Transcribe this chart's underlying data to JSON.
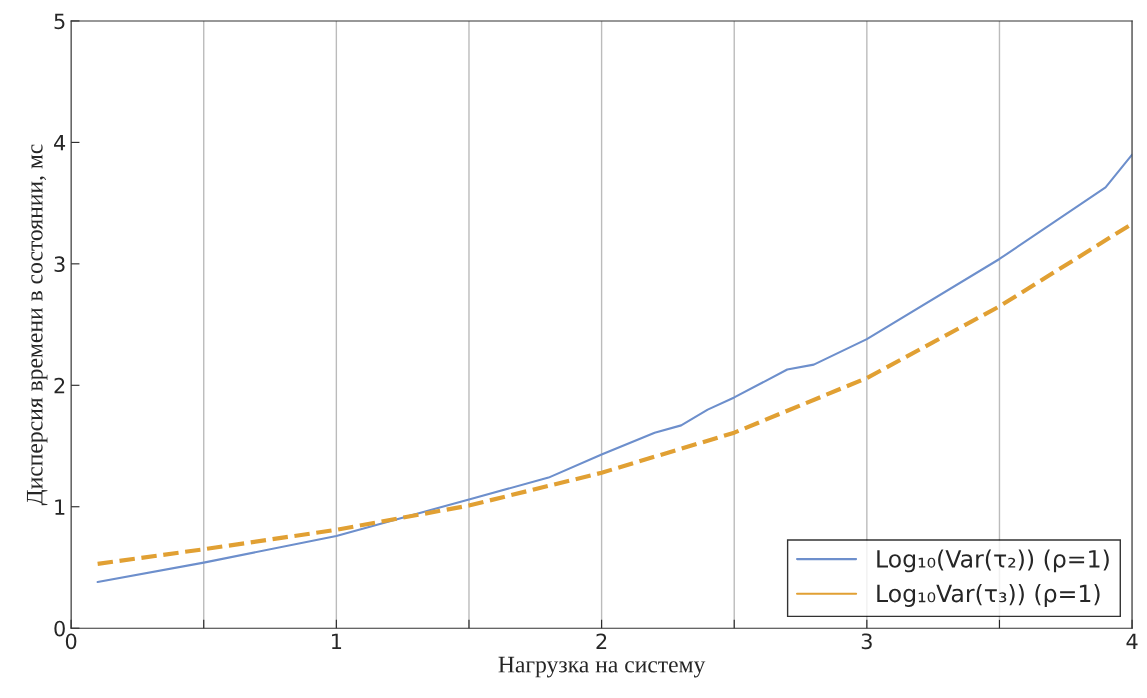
{
  "chart_data": {
    "type": "line",
    "xlabel": "Нагрузка на систему",
    "ylabel": "Дисперсия времени в состоянии, мс",
    "xlim": [
      0,
      4
    ],
    "ylim": [
      0,
      5
    ],
    "xticks": [
      0,
      {
        "value": 0.5,
        "label": null
      },
      1,
      {
        "value": 1.5,
        "label": null
      },
      2,
      {
        "value": 2.5,
        "label": null
      },
      3,
      {
        "value": 3.5,
        "label": null
      },
      4
    ],
    "yticks": [
      0,
      1,
      2,
      3,
      4,
      5
    ],
    "grid": "x",
    "legend": "bottom right",
    "series": [
      {
        "name": "Log₁₀(Var(τ₂)) (ρ=1)",
        "color": "#6d8fcc",
        "line_style": "solid",
        "x": [
          0.1,
          0.5,
          1,
          1.5,
          1.8,
          2,
          2.2,
          2.3,
          2.4,
          2.5,
          2.7,
          2.8,
          3,
          3.5,
          3.9,
          4
        ],
        "values": [
          0.38,
          0.54,
          0.76,
          1.06,
          1.24,
          1.43,
          1.61,
          1.67,
          1.8,
          1.9,
          2.13,
          2.17,
          2.38,
          3.04,
          3.63,
          3.9
        ]
      },
      {
        "name": "Log₁₀Var(τ₃)) (ρ=1)",
        "color": "#e1a033",
        "line_style": "dashed",
        "x": [
          0.1,
          0.5,
          1,
          1.5,
          2,
          2.5,
          3,
          3.5,
          4
        ],
        "values": [
          0.53,
          0.65,
          0.81,
          1.01,
          1.28,
          1.61,
          2.06,
          2.65,
          3.33
        ]
      }
    ]
  }
}
